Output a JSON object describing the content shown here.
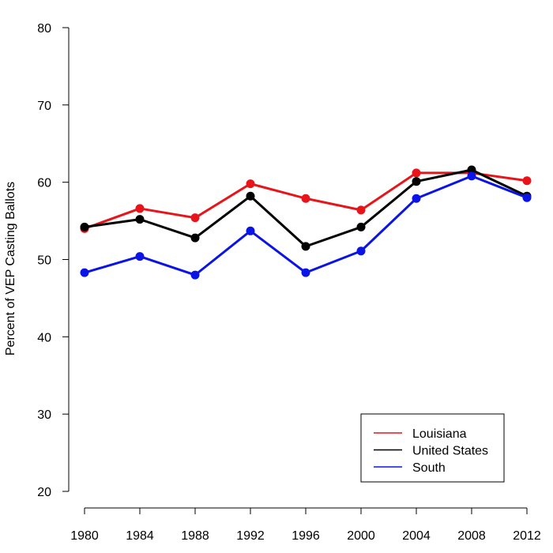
{
  "chart_data": {
    "type": "line",
    "title": "",
    "xlabel": "",
    "ylabel": "Percent of VEP Casting Ballots",
    "x": [
      1980,
      1984,
      1988,
      1992,
      1996,
      2000,
      2004,
      2008,
      2012
    ],
    "xticks": [
      "1980",
      "1984",
      "1988",
      "1992",
      "1996",
      "2000",
      "2004",
      "2008",
      "2012"
    ],
    "ylim": [
      20,
      80
    ],
    "yticks": [
      "20",
      "30",
      "40",
      "50",
      "60",
      "70",
      "80"
    ],
    "grid": false,
    "legend_position": "bottom-right",
    "series": [
      {
        "name": "Louisiana",
        "color": "#e8141a",
        "values": [
          54.0,
          56.6,
          55.4,
          59.8,
          57.9,
          56.4,
          61.2,
          61.2,
          60.2
        ]
      },
      {
        "name": "United States",
        "color": "#000000",
        "values": [
          54.2,
          55.2,
          52.8,
          58.2,
          51.7,
          54.2,
          60.1,
          61.6,
          58.2
        ]
      },
      {
        "name": "South",
        "color": "#0a14e6",
        "values": [
          48.3,
          50.4,
          48.0,
          53.7,
          48.3,
          51.1,
          57.9,
          60.8,
          58.0
        ]
      }
    ]
  }
}
